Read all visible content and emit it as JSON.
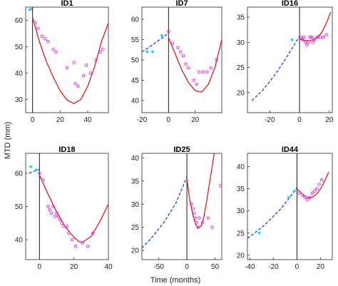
{
  "figure": {
    "xlabel": "Time (months)",
    "ylabel": "MTD (mm)"
  },
  "colors": {
    "pre_fit": "#1f3fd6",
    "post_fit": "#e01b1b",
    "post_points": "#e61ee6",
    "pre_points": "#22d3e6",
    "treatment_line": "#000000"
  },
  "chart_data": [
    {
      "type": "scatter",
      "title": "ID1",
      "xlim": [
        -5,
        55
      ],
      "ylim": [
        25,
        65
      ],
      "xticks": [
        0,
        20,
        40
      ],
      "yticks": [
        30,
        40,
        50,
        60
      ],
      "pre_points": [
        [
          -2,
          64
        ]
      ],
      "post_points": [
        [
          2,
          59
        ],
        [
          4,
          57
        ],
        [
          7,
          54
        ],
        [
          9,
          53
        ],
        [
          11,
          52
        ],
        [
          15,
          49
        ],
        [
          17,
          48
        ],
        [
          25,
          42
        ],
        [
          30,
          44
        ],
        [
          31,
          36
        ],
        [
          33,
          35
        ],
        [
          37,
          39
        ],
        [
          39,
          43
        ],
        [
          42,
          40
        ],
        [
          46,
          45
        ],
        [
          49,
          48
        ],
        [
          51,
          49
        ]
      ],
      "pre_fit": [
        [
          -2,
          64
        ],
        [
          -1,
          64.3
        ],
        [
          0,
          64.6
        ]
      ],
      "post_fit": [
        [
          0,
          61
        ],
        [
          5,
          51.9
        ],
        [
          10,
          44.4
        ],
        [
          15,
          38.4
        ],
        [
          20,
          33.3
        ],
        [
          25,
          29.8
        ],
        [
          30,
          28.5
        ],
        [
          35,
          30
        ],
        [
          40,
          35
        ],
        [
          45,
          42.5
        ],
        [
          50,
          51.9
        ],
        [
          55,
          59
        ]
      ]
    },
    {
      "type": "scatter",
      "title": "ID7",
      "xlim": [
        -20,
        40
      ],
      "ylim": [
        37,
        63
      ],
      "xticks": [
        -20,
        0,
        20
      ],
      "yticks": [
        40,
        45,
        50,
        55,
        60
      ],
      "pre_points": [
        [
          -16,
          52
        ],
        [
          -12,
          52
        ],
        [
          -5,
          56
        ]
      ],
      "post_points": [
        [
          0,
          57
        ],
        [
          3,
          54
        ],
        [
          7,
          53
        ],
        [
          9,
          52
        ],
        [
          11,
          51
        ],
        [
          13,
          49
        ],
        [
          15,
          48
        ],
        [
          19,
          45
        ],
        [
          21,
          44
        ],
        [
          23,
          47
        ],
        [
          26,
          47
        ],
        [
          29,
          47
        ],
        [
          32,
          48
        ],
        [
          36,
          50
        ]
      ],
      "pre_fit": [
        [
          -20,
          52
        ],
        [
          -15,
          53
        ],
        [
          -10,
          54.2
        ],
        [
          -5,
          55.4
        ],
        [
          0,
          56.6
        ]
      ],
      "post_fit": [
        [
          0,
          55.5
        ],
        [
          5,
          51.5
        ],
        [
          10,
          47.5
        ],
        [
          15,
          44.4
        ],
        [
          20,
          42.4
        ],
        [
          25,
          42.1
        ],
        [
          30,
          44
        ],
        [
          35,
          48.3
        ],
        [
          40,
          55
        ]
      ]
    },
    {
      "type": "scatter",
      "title": "ID16",
      "xlim": [
        -35,
        22
      ],
      "ylim": [
        16,
        37
      ],
      "xticks": [
        -20,
        0,
        20
      ],
      "yticks": [
        20,
        25,
        30,
        35
      ],
      "pre_points": [
        [
          -5,
          30.5
        ]
      ],
      "post_points": [
        [
          1,
          31
        ],
        [
          2,
          30.5
        ],
        [
          3,
          31
        ],
        [
          4,
          30
        ],
        [
          5,
          29.5
        ],
        [
          6,
          30
        ],
        [
          7,
          31
        ],
        [
          8,
          31
        ],
        [
          9,
          30
        ],
        [
          10,
          30.5
        ],
        [
          12,
          31
        ],
        [
          14,
          31
        ],
        [
          16,
          31
        ],
        [
          18,
          31.5
        ]
      ],
      "pre_fit": [
        [
          -32,
          18.4
        ],
        [
          -25,
          20.4
        ],
        [
          -20,
          22.2
        ],
        [
          -15,
          24.2
        ],
        [
          -10,
          26.4
        ],
        [
          -5,
          28.8
        ],
        [
          0,
          31.2
        ]
      ],
      "post_fit": [
        [
          0,
          30.7
        ],
        [
          3,
          30.4
        ],
        [
          6,
          30.3
        ],
        [
          9,
          30.5
        ],
        [
          12,
          31
        ],
        [
          15,
          32
        ],
        [
          18,
          33.8
        ],
        [
          21,
          36
        ]
      ]
    },
    {
      "type": "scatter",
      "title": "ID18",
      "xlim": [
        -8,
        40
      ],
      "ylim": [
        34,
        66
      ],
      "xticks": [
        0,
        20,
        40
      ],
      "yticks": [
        40,
        50,
        60
      ],
      "pre_points": [
        [
          -5,
          62
        ],
        [
          -2,
          61
        ]
      ],
      "post_points": [
        [
          0,
          60
        ],
        [
          2,
          58
        ],
        [
          5,
          50
        ],
        [
          6,
          49
        ],
        [
          7,
          48
        ],
        [
          8,
          50
        ],
        [
          9,
          47
        ],
        [
          10,
          48
        ],
        [
          11,
          47
        ],
        [
          12,
          46
        ],
        [
          13,
          45
        ],
        [
          14,
          44
        ],
        [
          16,
          44
        ],
        [
          17,
          42
        ],
        [
          19,
          40
        ],
        [
          21,
          38
        ],
        [
          25,
          39
        ],
        [
          28,
          38
        ],
        [
          31,
          42
        ]
      ],
      "pre_fit": [
        [
          -6,
          60
        ],
        [
          -3,
          60.6
        ],
        [
          0,
          61.2
        ]
      ],
      "post_fit": [
        [
          0,
          59.5
        ],
        [
          5,
          53.7
        ],
        [
          10,
          48.3
        ],
        [
          15,
          43.9
        ],
        [
          20,
          40.7
        ],
        [
          23,
          39.4
        ],
        [
          25,
          39.2
        ],
        [
          30,
          41
        ],
        [
          35,
          45.4
        ],
        [
          40,
          50.7
        ]
      ]
    },
    {
      "type": "scatter",
      "title": "ID25",
      "xlim": [
        -80,
        62
      ],
      "ylim": [
        18,
        41
      ],
      "xticks": [
        -50,
        0,
        50
      ],
      "yticks": [
        20,
        25,
        30,
        35,
        40
      ],
      "pre_points": [],
      "post_points": [
        [
          8,
          30
        ],
        [
          11,
          29
        ],
        [
          13,
          28
        ],
        [
          15,
          27
        ],
        [
          17,
          26
        ],
        [
          20,
          25
        ],
        [
          22,
          27
        ],
        [
          28,
          26
        ],
        [
          38,
          27
        ],
        [
          45,
          25
        ],
        [
          60,
          34
        ]
      ],
      "pre_fit": [
        [
          -80,
          20.5
        ],
        [
          -60,
          23.1
        ],
        [
          -40,
          26.2
        ],
        [
          -20,
          30.1
        ],
        [
          0,
          35.9
        ]
      ],
      "post_fit": [
        [
          0,
          35.5
        ],
        [
          5,
          31
        ],
        [
          10,
          28
        ],
        [
          15,
          25.8
        ],
        [
          20,
          24.8
        ],
        [
          25,
          25.2
        ],
        [
          30,
          27.2
        ],
        [
          35,
          30.5
        ],
        [
          40,
          34.3
        ],
        [
          45,
          38.2
        ],
        [
          50,
          42
        ]
      ]
    },
    {
      "type": "scatter",
      "title": "ID44",
      "xlim": [
        -42,
        30
      ],
      "ylim": [
        19,
        43
      ],
      "xticks": [
        -40,
        -20,
        0,
        20
      ],
      "yticks": [
        20,
        25,
        30,
        35,
        40
      ],
      "pre_points": [
        [
          -32,
          25
        ],
        [
          -7,
          33
        ],
        [
          -2,
          34.5
        ]
      ],
      "post_points": [
        [
          2,
          34
        ],
        [
          5,
          33.5
        ],
        [
          7,
          33
        ],
        [
          9,
          32.5
        ],
        [
          11,
          33
        ],
        [
          13,
          34
        ],
        [
          15,
          34.5
        ],
        [
          17,
          35
        ],
        [
          19,
          36
        ],
        [
          21,
          37
        ]
      ],
      "pre_fit": [
        [
          -42,
          23.8
        ],
        [
          -35,
          25.2
        ],
        [
          -28,
          26.7
        ],
        [
          -21,
          28.5
        ],
        [
          -14,
          30.4
        ],
        [
          -7,
          32.7
        ],
        [
          0,
          35.3
        ]
      ],
      "post_fit": [
        [
          0,
          35
        ],
        [
          3,
          34.2
        ],
        [
          6,
          33.5
        ],
        [
          9,
          33
        ],
        [
          12,
          33
        ],
        [
          15,
          33.4
        ],
        [
          18,
          34.2
        ],
        [
          21,
          35.4
        ],
        [
          24,
          37
        ],
        [
          27,
          38.8
        ]
      ]
    }
  ]
}
